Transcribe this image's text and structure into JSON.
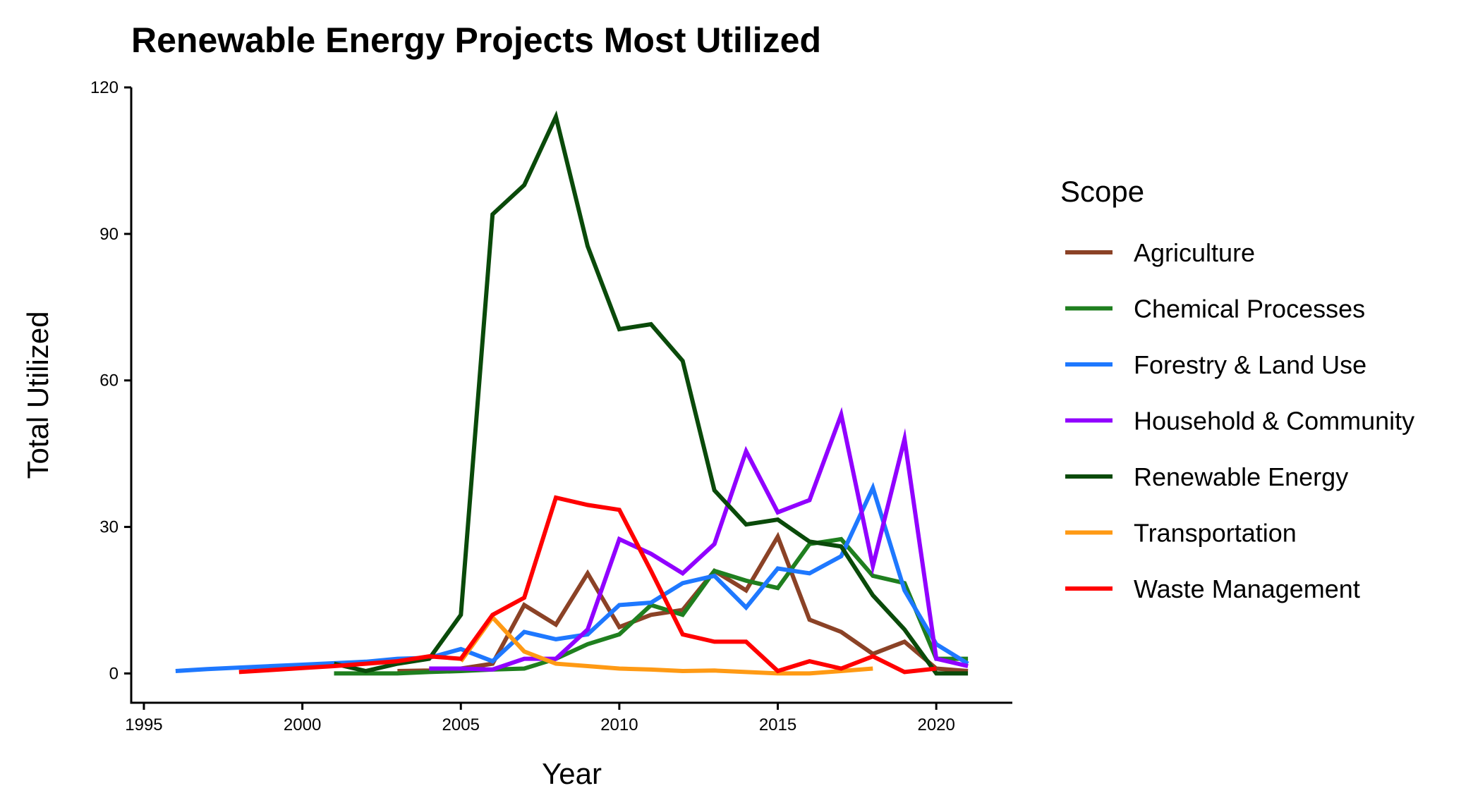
{
  "chart_data": {
    "type": "line",
    "title": "Renewable Energy Projects Most Utilized",
    "xlabel": "Year",
    "ylabel": "Total Utilized",
    "xlim": [
      1994.6,
      2022.4
    ],
    "ylim": [
      -6,
      120
    ],
    "xticks": [
      1995,
      2000,
      2005,
      2010,
      2015,
      2020
    ],
    "yticks": [
      0,
      30,
      60,
      90,
      120
    ],
    "grid": false,
    "legend": {
      "title": "Scope",
      "position": "right"
    },
    "series": [
      {
        "name": "Agriculture",
        "color": "#8B4226",
        "points": [
          [
            2003,
            0.5
          ],
          [
            2004,
            0.6
          ],
          [
            2005,
            1
          ],
          [
            2006,
            2
          ],
          [
            2007,
            14
          ],
          [
            2008,
            10
          ],
          [
            2009,
            20.5
          ],
          [
            2010,
            9.5
          ],
          [
            2011,
            12
          ],
          [
            2012,
            13
          ],
          [
            2013,
            21
          ],
          [
            2014,
            17
          ],
          [
            2015,
            28
          ],
          [
            2016,
            11
          ],
          [
            2017,
            8.5
          ],
          [
            2018,
            4
          ],
          [
            2019,
            6.5
          ],
          [
            2020,
            1
          ],
          [
            2021,
            0.5
          ]
        ]
      },
      {
        "name": "Chemical Processes",
        "color": "#1F7F1F",
        "points": [
          [
            2001,
            0
          ],
          [
            2002,
            0
          ],
          [
            2003,
            0
          ],
          [
            2004,
            0.3
          ],
          [
            2005,
            0.5
          ],
          [
            2006,
            0.8
          ],
          [
            2007,
            1
          ],
          [
            2008,
            3
          ],
          [
            2009,
            6
          ],
          [
            2010,
            8
          ],
          [
            2011,
            14
          ],
          [
            2012,
            12
          ],
          [
            2013,
            21
          ],
          [
            2014,
            19
          ],
          [
            2015,
            17.5
          ],
          [
            2016,
            26.5
          ],
          [
            2017,
            27.5
          ],
          [
            2018,
            20
          ],
          [
            2019,
            18.5
          ],
          [
            2020,
            3
          ],
          [
            2021,
            3
          ]
        ]
      },
      {
        "name": "Forestry & Land Use",
        "color": "#1E78FF",
        "points": [
          [
            1996,
            0.5
          ],
          [
            1997,
            0.9
          ],
          [
            1998,
            1.2
          ],
          [
            1999,
            1.5
          ],
          [
            2000,
            1.8
          ],
          [
            2001,
            2.1
          ],
          [
            2002,
            2.4
          ],
          [
            2003,
            3
          ],
          [
            2004,
            3.2
          ],
          [
            2005,
            5
          ],
          [
            2006,
            2.5
          ],
          [
            2007,
            8.5
          ],
          [
            2008,
            7
          ],
          [
            2009,
            8
          ],
          [
            2010,
            14
          ],
          [
            2011,
            14.5
          ],
          [
            2012,
            18.5
          ],
          [
            2013,
            20
          ],
          [
            2014,
            13.5
          ],
          [
            2015,
            21.5
          ],
          [
            2016,
            20.5
          ],
          [
            2017,
            24
          ],
          [
            2018,
            38
          ],
          [
            2019,
            17
          ],
          [
            2020,
            6
          ],
          [
            2021,
            2
          ]
        ]
      },
      {
        "name": "Household & Community",
        "color": "#9100FF",
        "points": [
          [
            2004,
            1
          ],
          [
            2005,
            1
          ],
          [
            2006,
            0.8
          ],
          [
            2007,
            3
          ],
          [
            2008,
            3
          ],
          [
            2009,
            9
          ],
          [
            2010,
            27.5
          ],
          [
            2011,
            24.5
          ],
          [
            2012,
            20.5
          ],
          [
            2013,
            26.5
          ],
          [
            2014,
            45.5
          ],
          [
            2015,
            33
          ],
          [
            2016,
            35.5
          ],
          [
            2017,
            53
          ],
          [
            2018,
            22
          ],
          [
            2019,
            48
          ],
          [
            2020,
            3
          ],
          [
            2021,
            1.5
          ]
        ]
      },
      {
        "name": "Renewable Energy",
        "color": "#0A4A0A",
        "points": [
          [
            2001,
            2
          ],
          [
            2002,
            0.5
          ],
          [
            2003,
            2
          ],
          [
            2004,
            3
          ],
          [
            2005,
            12
          ],
          [
            2006,
            94
          ],
          [
            2007,
            100
          ],
          [
            2008,
            114
          ],
          [
            2009,
            87.5
          ],
          [
            2010,
            70.5
          ],
          [
            2011,
            71.5
          ],
          [
            2012,
            64
          ],
          [
            2013,
            37.5
          ],
          [
            2014,
            30.5
          ],
          [
            2015,
            31.5
          ],
          [
            2016,
            27
          ],
          [
            2017,
            26
          ],
          [
            2018,
            16
          ],
          [
            2019,
            9
          ],
          [
            2020,
            0
          ],
          [
            2021,
            0
          ]
        ]
      },
      {
        "name": "Transportation",
        "color": "#FF9A14",
        "points": [
          [
            2005,
            2.5
          ],
          [
            2006,
            11.5
          ],
          [
            2007,
            4.5
          ],
          [
            2008,
            2
          ],
          [
            2009,
            1.5
          ],
          [
            2010,
            1
          ],
          [
            2011,
            0.8
          ],
          [
            2012,
            0.5
          ],
          [
            2013,
            0.6
          ],
          [
            2014,
            0.3
          ],
          [
            2015,
            0
          ],
          [
            2016,
            0
          ],
          [
            2017,
            0.5
          ],
          [
            2018,
            1
          ]
        ]
      },
      {
        "name": "Waste Management",
        "color": "#FF0000",
        "points": [
          [
            1998,
            0.3
          ],
          [
            1999,
            0.7
          ],
          [
            2000,
            1.1
          ],
          [
            2001,
            1.5
          ],
          [
            2002,
            2
          ],
          [
            2003,
            2.5
          ],
          [
            2004,
            3.5
          ],
          [
            2005,
            3
          ],
          [
            2006,
            12
          ],
          [
            2007,
            15.5
          ],
          [
            2008,
            36
          ],
          [
            2009,
            34.5
          ],
          [
            2010,
            33.5
          ],
          [
            2011,
            21
          ],
          [
            2012,
            8
          ],
          [
            2013,
            6.5
          ],
          [
            2014,
            6.5
          ],
          [
            2015,
            0.5
          ],
          [
            2016,
            2.5
          ],
          [
            2017,
            1
          ],
          [
            2018,
            3.5
          ],
          [
            2019,
            0.3
          ],
          [
            2020,
            1
          ]
        ]
      }
    ]
  }
}
